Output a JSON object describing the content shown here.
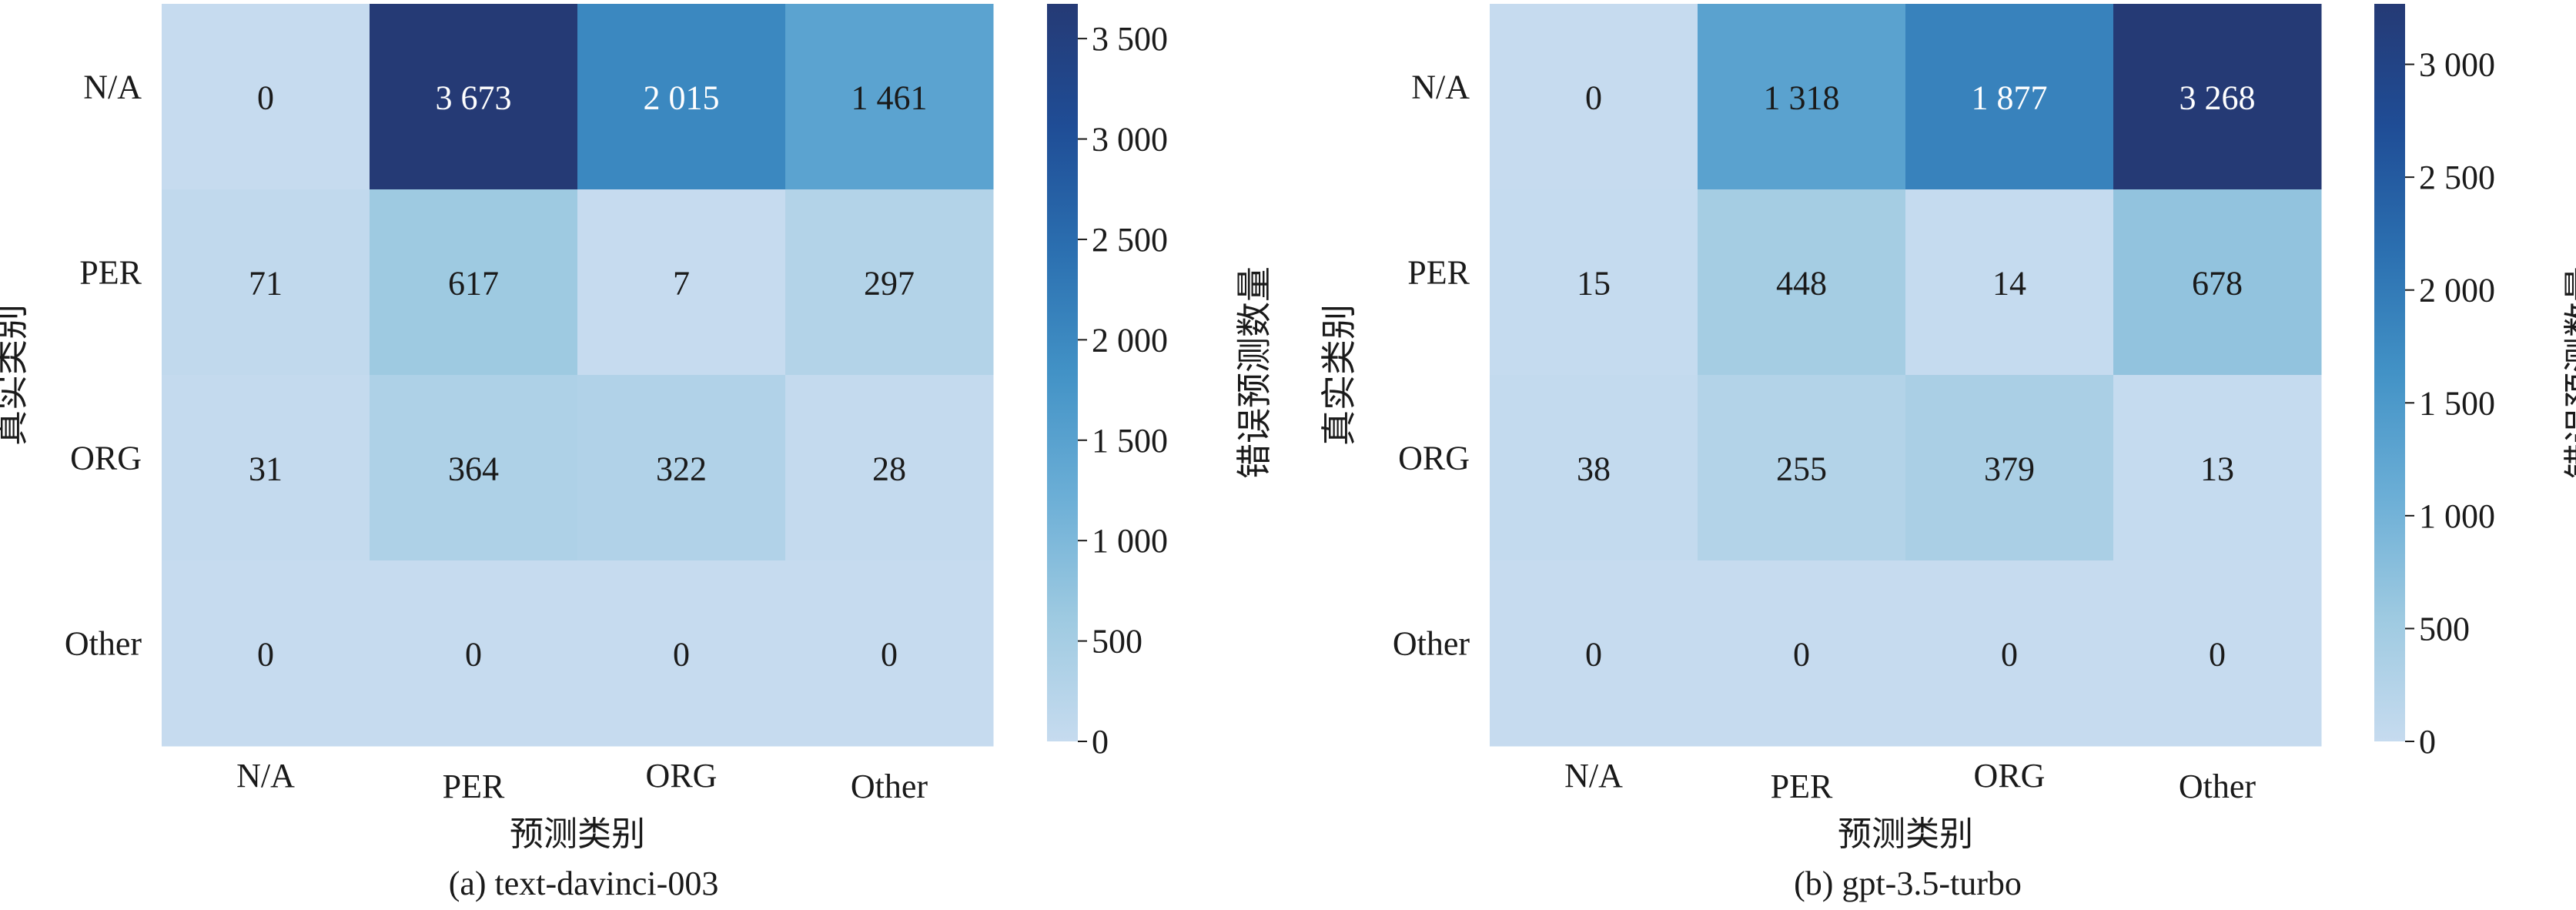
{
  "chart_data": [
    {
      "type": "heatmap",
      "caption": "(a)  text-davinci-003",
      "xlabel": "预测类别",
      "ylabel": "真实类别",
      "x_categories": [
        "N/A",
        "PER",
        "ORG",
        "Other"
      ],
      "y_categories": [
        "N/A",
        "PER",
        "ORG",
        "Other"
      ],
      "values": [
        [
          0,
          3673,
          2015,
          1461
        ],
        [
          71,
          617,
          7,
          297
        ],
        [
          31,
          364,
          322,
          28
        ],
        [
          0,
          0,
          0,
          0
        ]
      ],
      "cell_labels": [
        [
          "0",
          "3 673",
          "2 015",
          "1 461"
        ],
        [
          "71",
          "617",
          "7",
          "297"
        ],
        [
          "31",
          "364",
          "322",
          "28"
        ],
        [
          "0",
          "0",
          "0",
          "0"
        ]
      ],
      "colorbar": {
        "label": "错误预测数量",
        "range": [
          0,
          3673
        ],
        "ticks": [
          0,
          500,
          1000,
          1500,
          2000,
          2500,
          3000,
          3500
        ],
        "tick_labels": [
          "0",
          "500",
          "1 000",
          "1 500",
          "2 000",
          "2 500",
          "3 000",
          "3 500"
        ]
      },
      "colormap": [
        "#c6dbef",
        "#9ecae1",
        "#6baed6",
        "#4292c6",
        "#2b6fb0",
        "#1f4d96",
        "#253a75"
      ]
    },
    {
      "type": "heatmap",
      "caption": "(b)  gpt-3.5-turbo",
      "xlabel": "预测类别",
      "ylabel": "真实类别",
      "x_categories": [
        "N/A",
        "PER",
        "ORG",
        "Other"
      ],
      "y_categories": [
        "N/A",
        "PER",
        "ORG",
        "Other"
      ],
      "values": [
        [
          0,
          1318,
          1877,
          3268
        ],
        [
          15,
          448,
          14,
          678
        ],
        [
          38,
          255,
          379,
          13
        ],
        [
          0,
          0,
          0,
          0
        ]
      ],
      "cell_labels": [
        [
          "0",
          "1 318",
          "1 877",
          "3 268"
        ],
        [
          "15",
          "448",
          "14",
          "678"
        ],
        [
          "38",
          "255",
          "379",
          "13"
        ],
        [
          "0",
          "0",
          "0",
          "0"
        ]
      ],
      "colorbar": {
        "label": "错误预测数量",
        "range": [
          0,
          3268
        ],
        "ticks": [
          0,
          500,
          1000,
          1500,
          2000,
          2500,
          3000
        ],
        "tick_labels": [
          "0",
          "500",
          "1 000",
          "1 500",
          "2 000",
          "2 500",
          "3 000"
        ]
      },
      "colormap": [
        "#c6dbef",
        "#9ecae1",
        "#6baed6",
        "#4292c6",
        "#2b6fb0",
        "#1f4d96",
        "#253a75"
      ]
    }
  ]
}
